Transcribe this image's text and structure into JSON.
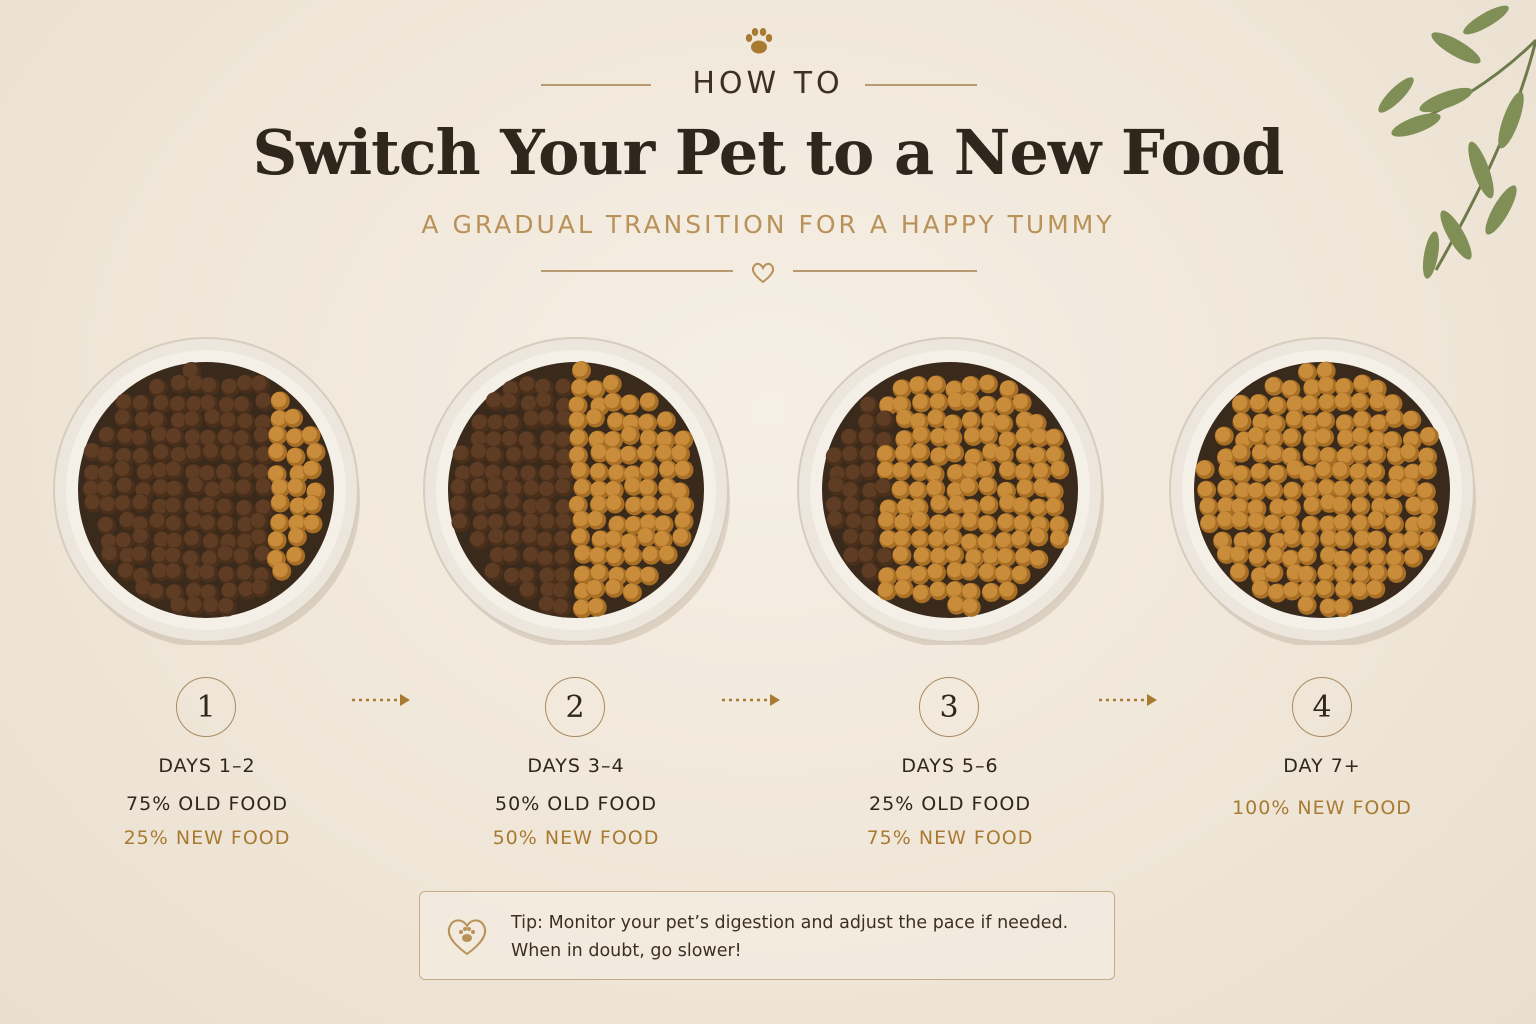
{
  "header": {
    "kicker": "HOW TO",
    "title": "Switch Your Pet to a New Food",
    "subtitle": "A GRADUAL TRANSITION FOR A HAPPY TUMMY"
  },
  "icons": {
    "top": "paw-icon",
    "divider": "heart-icon",
    "tip": "heart-paw-icon",
    "decoration": "olive-branch"
  },
  "colors": {
    "background": "#f2eadd",
    "title": "#2f261c",
    "accent": "#b9925a",
    "old_food": "#5e3d24",
    "new_food": "#c98c3a"
  },
  "steps": [
    {
      "number": "1",
      "days": "DAYS 1–2",
      "old": "75% OLD FOOD",
      "new": "25% NEW FOOD",
      "new_share": 0.25
    },
    {
      "number": "2",
      "days": "DAYS 3–4",
      "old": "50% OLD FOOD",
      "new": "50% NEW FOOD",
      "new_share": 0.5
    },
    {
      "number": "3",
      "days": "DAYS 5–6",
      "old": "25% OLD FOOD",
      "new": "75% NEW FOOD",
      "new_share": 0.75
    },
    {
      "number": "4",
      "days": "DAY 7+",
      "old": "",
      "new": "100% NEW FOOD",
      "new_share": 1.0
    }
  ],
  "tip": {
    "line1": "Tip: Monitor your pet’s digestion and adjust the pace if needed.",
    "line2": "When in doubt, go slower!"
  }
}
